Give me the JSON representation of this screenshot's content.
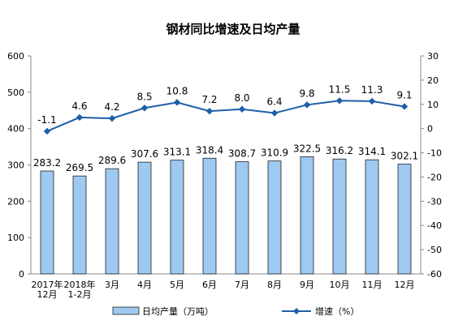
{
  "chart_data": {
    "type": "bar",
    "title": "钢材同比增速及日均产量",
    "categories": [
      [
        "2017年",
        "12月"
      ],
      [
        "2018年",
        "1-2月"
      ],
      [
        "3月"
      ],
      [
        "4月"
      ],
      [
        "5月"
      ],
      [
        "6月"
      ],
      [
        "7月"
      ],
      [
        "8月"
      ],
      [
        "9月"
      ],
      [
        "10月"
      ],
      [
        "11月"
      ],
      [
        "12月"
      ]
    ],
    "series": [
      {
        "name": "日均产量（万吨）",
        "type": "bar",
        "axis": "left",
        "color": "#9ec9f0",
        "values": [
          283.2,
          269.5,
          289.6,
          307.6,
          313.1,
          318.4,
          308.7,
          310.9,
          322.5,
          316.2,
          314.1,
          302.1
        ],
        "labels": [
          "283.2",
          "269.5",
          "289.6",
          "307.6",
          "313.1",
          "318.4",
          "308.7",
          "310.9",
          "322.5",
          "316.2",
          "314.1",
          "302.1"
        ]
      },
      {
        "name": "增速（%）",
        "type": "line",
        "axis": "right",
        "color": "#1f5fa8",
        "values": [
          -1.1,
          4.6,
          4.2,
          8.5,
          10.8,
          7.2,
          8.0,
          6.4,
          9.8,
          11.5,
          11.3,
          9.1
        ],
        "labels": [
          "-1.1",
          "4.6",
          "4.2",
          "8.5",
          "10.8",
          "7.2",
          "8.0",
          "6.4",
          "9.8",
          "11.5",
          "11.3",
          "9.1"
        ]
      }
    ],
    "y_left": {
      "range": [
        0,
        600
      ],
      "ticks": [
        "0",
        "100",
        "200",
        "300",
        "400",
        "500",
        "600"
      ]
    },
    "y_right": {
      "range": [
        -60,
        30
      ],
      "ticks": [
        "-60",
        "-50",
        "-40",
        "-30",
        "-20",
        "-10",
        "0",
        "10",
        "20",
        "30"
      ]
    },
    "grid": false,
    "legend_position": "bottom"
  }
}
